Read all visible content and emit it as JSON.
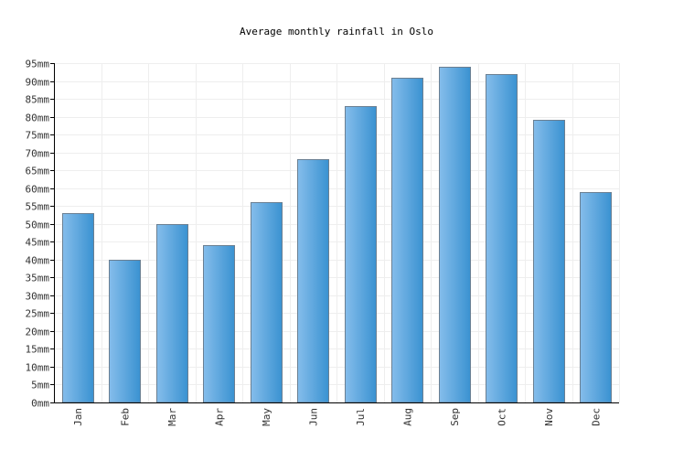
{
  "chart_data": {
    "type": "bar",
    "title": "Average monthly rainfall in Oslo",
    "xlabel": "",
    "ylabel": "",
    "categories": [
      "Jan",
      "Feb",
      "Mar",
      "Apr",
      "May",
      "Jun",
      "Jul",
      "Aug",
      "Sep",
      "Oct",
      "Nov",
      "Dec"
    ],
    "values": [
      53,
      40,
      50,
      44,
      56,
      68,
      83,
      91,
      94,
      92,
      79,
      59
    ],
    "ylim": [
      0,
      95
    ],
    "ytick_step": 5,
    "ytick_suffix": "mm",
    "grid": true,
    "legend": "none",
    "colors": {
      "bar_light": "#85bdeb",
      "bar_dark": "#3a92d1",
      "bar_edge": "#6a7f92",
      "grid": "#eeeeee",
      "axis": "#000000",
      "text": "#333333"
    }
  }
}
